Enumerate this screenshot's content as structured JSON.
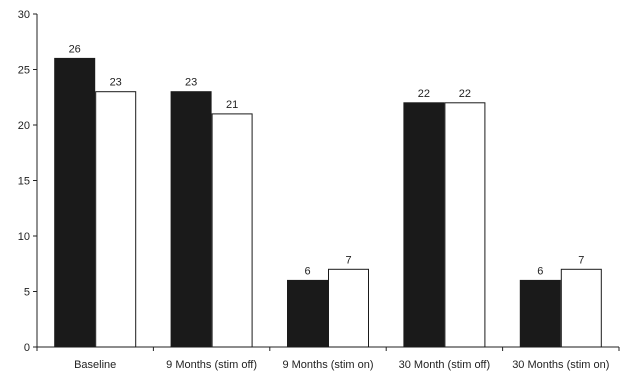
{
  "chart_data": {
    "type": "bar",
    "categories": [
      "Baseline",
      "9 Months (stim off)",
      "9 Months (stim on)",
      "30 Month (stim off)",
      "30 Months (stim on)"
    ],
    "series": [
      {
        "values": [
          26,
          23,
          6,
          22,
          6
        ],
        "color": "#1a1a1a"
      },
      {
        "values": [
          23,
          21,
          7,
          22,
          7
        ],
        "color": "#ffffff"
      }
    ],
    "ylim": [
      0,
      30
    ],
    "yticks": [
      "0",
      "5",
      "10",
      "15",
      "20",
      "25",
      "30"
    ],
    "data_labels": true,
    "legend": "none",
    "grid": false
  }
}
